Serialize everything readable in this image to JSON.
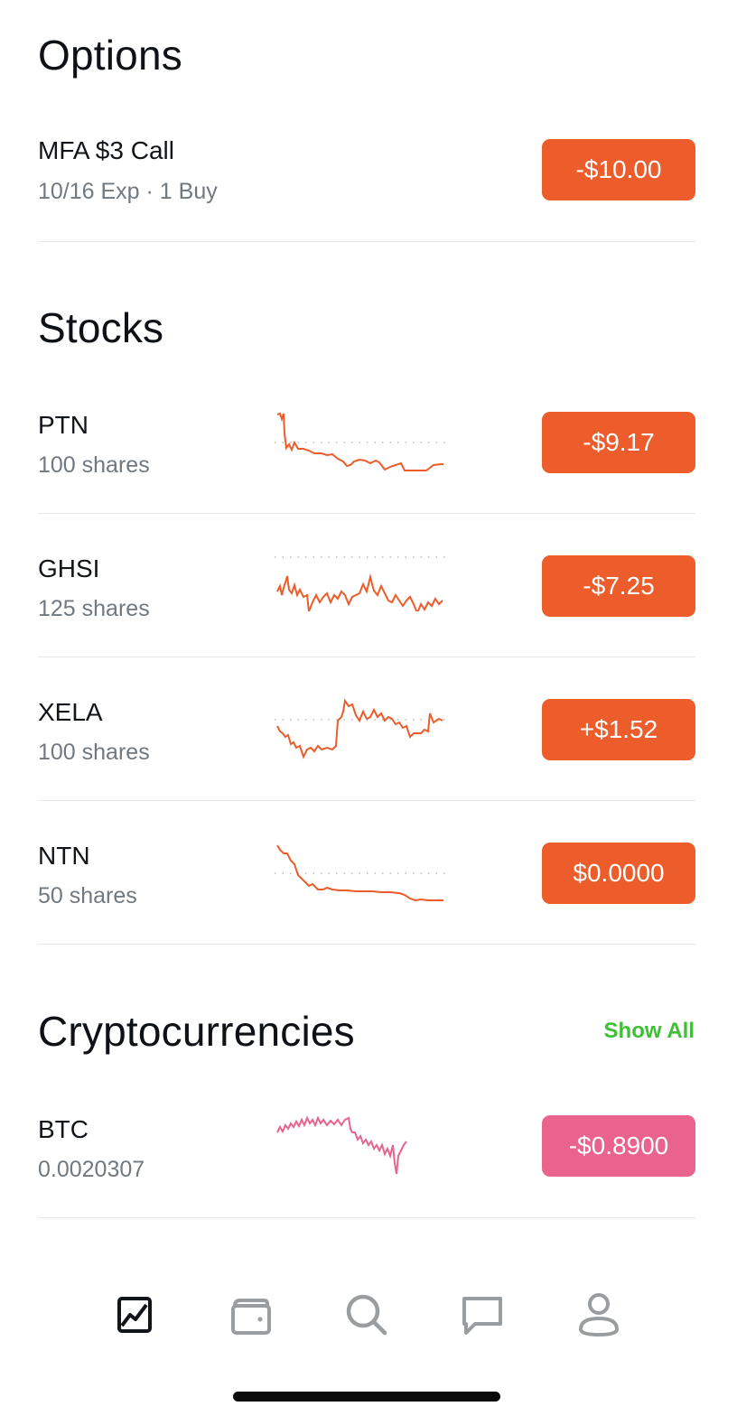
{
  "colors": {
    "negative": "#ec5d2b",
    "crypto": "#ea638c",
    "accent": "#3fbf36",
    "tab_active": "#111418",
    "tab_inactive": "#9a9da0"
  },
  "options": {
    "title": "Options",
    "items": [
      {
        "name": "MFA $3 Call",
        "sub": "10/16 Exp · 1 Buy",
        "value": "-$10.00"
      }
    ]
  },
  "stocks": {
    "title": "Stocks",
    "items": [
      {
        "name": "PTN",
        "sub": "100 shares",
        "value": "-$9.17"
      },
      {
        "name": "GHSI",
        "sub": "125 shares",
        "value": "-$7.25"
      },
      {
        "name": "XELA",
        "sub": "100 shares",
        "value": "+$1.52"
      },
      {
        "name": "NTN",
        "sub": "50 shares",
        "value": "$0.0000"
      }
    ]
  },
  "crypto": {
    "title": "Cryptocurrencies",
    "show_all": "Show All",
    "items": [
      {
        "name": "BTC",
        "sub": "0.0020307",
        "value": "-$0.8900"
      }
    ]
  },
  "tabbar": {
    "items": [
      {
        "icon": "chart-icon",
        "active": true
      },
      {
        "icon": "wallet-icon",
        "active": false
      },
      {
        "icon": "search-icon",
        "active": false
      },
      {
        "icon": "chat-icon",
        "active": false
      },
      {
        "icon": "profile-icon",
        "active": false
      }
    ]
  }
}
